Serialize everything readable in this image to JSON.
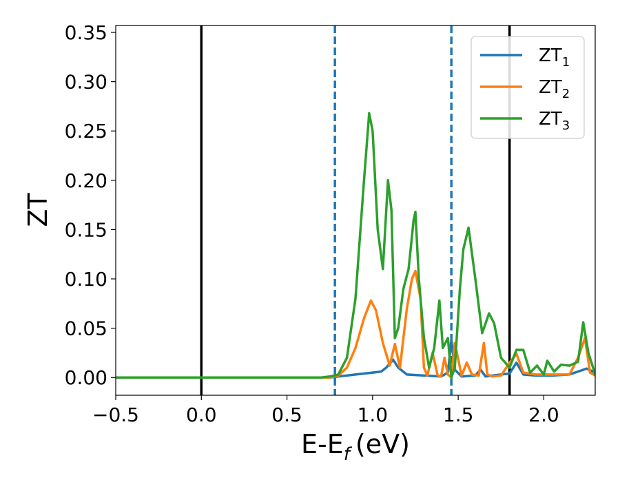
{
  "chart_data": {
    "type": "line",
    "title": "",
    "xlabel": "E-E",
    "xlabel_sub": "f",
    "xlabel_unit": "(eV)",
    "ylabel": "ZT",
    "xlim": [
      -0.5,
      2.3
    ],
    "ylim": [
      -0.018,
      0.357
    ],
    "xticks": [
      -0.5,
      0.0,
      0.5,
      1.0,
      1.5,
      2.0
    ],
    "xtick_labels": [
      "−0.5",
      "0.0",
      "0.5",
      "1.0",
      "1.5",
      "2.0"
    ],
    "yticks": [
      0.0,
      0.05,
      0.1,
      0.15,
      0.2,
      0.25,
      0.3,
      0.35
    ],
    "ytick_labels": [
      "0.00",
      "0.05",
      "0.10",
      "0.15",
      "0.20",
      "0.25",
      "0.30",
      "0.35"
    ],
    "grid": false,
    "legend_position": "top-right",
    "vlines": [
      {
        "x": 0.0,
        "style": "solid",
        "color": "#000000"
      },
      {
        "x": 1.8,
        "style": "solid",
        "color": "#000000"
      },
      {
        "x": 0.78,
        "style": "dashed",
        "color": "#1f77b4"
      },
      {
        "x": 1.46,
        "style": "dashed",
        "color": "#1f77b4"
      }
    ],
    "series": [
      {
        "name": "ZT",
        "name_sub": "1",
        "color": "#1f77b4",
        "x": [
          -0.5,
          0.75,
          0.8,
          0.9,
          1.0,
          1.05,
          1.08,
          1.12,
          1.15,
          1.2,
          1.3,
          1.4,
          1.44,
          1.46,
          1.48,
          1.52,
          1.6,
          1.63,
          1.66,
          1.7,
          1.75,
          1.8,
          1.84,
          1.88,
          1.95,
          2.05,
          2.15,
          2.25,
          2.3
        ],
        "y": [
          0.0,
          0.0,
          0.001,
          0.003,
          0.005,
          0.006,
          0.01,
          0.018,
          0.01,
          0.003,
          0.002,
          0.001,
          0.005,
          0.038,
          0.008,
          0.001,
          0.002,
          0.008,
          0.001,
          0.002,
          0.003,
          0.004,
          0.015,
          0.003,
          0.002,
          0.002,
          0.003,
          0.009,
          0.005
        ]
      },
      {
        "name": "ZT",
        "name_sub": "2",
        "color": "#ff7f0e",
        "x": [
          -0.5,
          0.75,
          0.8,
          0.85,
          0.9,
          0.95,
          0.99,
          1.02,
          1.06,
          1.1,
          1.13,
          1.16,
          1.2,
          1.23,
          1.25,
          1.28,
          1.3,
          1.32,
          1.35,
          1.38,
          1.4,
          1.42,
          1.44,
          1.46,
          1.48,
          1.52,
          1.55,
          1.58,
          1.62,
          1.65,
          1.67,
          1.7,
          1.75,
          1.8,
          1.84,
          1.88,
          1.95,
          2.05,
          2.15,
          2.2,
          2.24,
          2.27,
          2.3
        ],
        "y": [
          0.0,
          0.0,
          0.002,
          0.01,
          0.03,
          0.06,
          0.078,
          0.068,
          0.035,
          0.012,
          0.034,
          0.01,
          0.07,
          0.1,
          0.108,
          0.08,
          0.01,
          0.002,
          0.025,
          0.002,
          0.001,
          0.02,
          0.003,
          0.0,
          0.035,
          0.002,
          0.015,
          0.003,
          0.002,
          0.035,
          0.003,
          0.001,
          0.002,
          0.015,
          0.024,
          0.005,
          0.003,
          0.003,
          0.003,
          0.02,
          0.04,
          0.005,
          0.002
        ]
      },
      {
        "name": "ZT",
        "name_sub": "3",
        "color": "#2ca02c",
        "x": [
          -0.5,
          0.7,
          0.75,
          0.8,
          0.85,
          0.9,
          0.95,
          0.98,
          1.0,
          1.03,
          1.06,
          1.09,
          1.11,
          1.13,
          1.15,
          1.18,
          1.21,
          1.24,
          1.25,
          1.27,
          1.3,
          1.33,
          1.36,
          1.39,
          1.41,
          1.44,
          1.46,
          1.48,
          1.51,
          1.53,
          1.56,
          1.6,
          1.64,
          1.66,
          1.68,
          1.71,
          1.75,
          1.8,
          1.84,
          1.88,
          1.92,
          1.96,
          2.0,
          2.02,
          2.06,
          2.1,
          2.15,
          2.2,
          2.23,
          2.26,
          2.3
        ],
        "y": [
          0.0,
          0.0,
          0.001,
          0.003,
          0.02,
          0.08,
          0.2,
          0.268,
          0.25,
          0.15,
          0.11,
          0.2,
          0.17,
          0.04,
          0.05,
          0.09,
          0.11,
          0.16,
          0.168,
          0.1,
          0.04,
          0.01,
          0.03,
          0.078,
          0.03,
          0.04,
          0.0,
          0.01,
          0.09,
          0.13,
          0.152,
          0.1,
          0.045,
          0.055,
          0.065,
          0.055,
          0.02,
          0.01,
          0.028,
          0.028,
          0.005,
          0.012,
          0.003,
          0.017,
          0.006,
          0.013,
          0.012,
          0.016,
          0.056,
          0.025,
          0.003
        ]
      }
    ]
  }
}
